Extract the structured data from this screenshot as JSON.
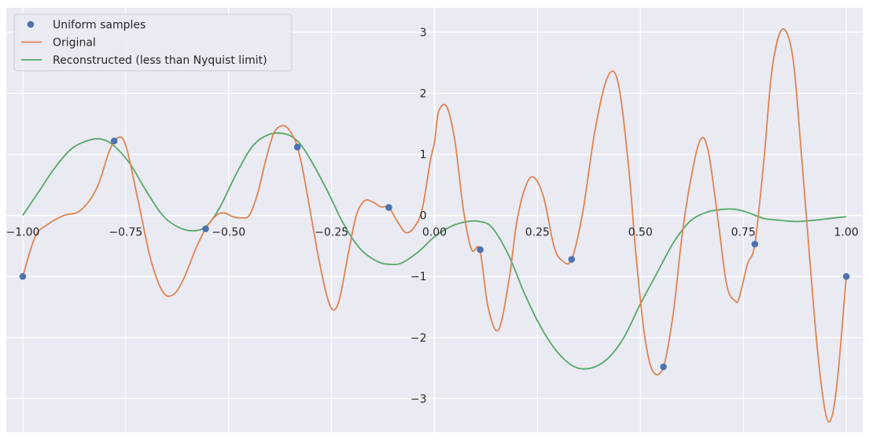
{
  "chart_data": {
    "type": "line",
    "title": "",
    "xlabel": "",
    "ylabel": "",
    "xlim": [
      -1.04,
      1.04
    ],
    "ylim": [
      -3.55,
      3.4
    ],
    "grid": true,
    "axes_through_origin": true,
    "legend_position": "top-left",
    "x_ticks": [
      -1.0,
      -0.75,
      -0.5,
      -0.25,
      0.0,
      0.25,
      0.5,
      0.75,
      1.0
    ],
    "x_tick_labels": [
      "−1.00",
      "−0.75",
      "−0.50",
      "−0.25",
      "0.00",
      "0.25",
      "0.50",
      "0.75",
      "1.00"
    ],
    "y_ticks": [
      -3,
      -2,
      -1,
      0,
      1,
      2,
      3
    ],
    "y_tick_labels": [
      "−3",
      "−2",
      "−1",
      "0",
      "1",
      "2",
      "3"
    ],
    "series": [
      {
        "name": "Uniform samples",
        "kind": "scatter",
        "color": "#4c72b0",
        "x": [
          -1.0,
          -0.778,
          -0.556,
          -0.333,
          -0.111,
          0.111,
          0.333,
          0.556,
          0.778,
          1.0
        ],
        "y": [
          -1.0,
          1.22,
          -0.22,
          1.12,
          0.13,
          -0.56,
          -0.72,
          -2.48,
          -0.47,
          -1.0
        ]
      },
      {
        "name": "Original",
        "kind": "line",
        "color": "#dd8452",
        "x": [
          -1.0,
          -0.97,
          -0.94,
          -0.9,
          -0.86,
          -0.82,
          -0.79,
          -0.77,
          -0.75,
          -0.72,
          -0.69,
          -0.66,
          -0.635,
          -0.61,
          -0.58,
          -0.556,
          -0.53,
          -0.51,
          -0.49,
          -0.47,
          -0.45,
          -0.43,
          -0.41,
          -0.39,
          -0.37,
          -0.355,
          -0.34,
          -0.333,
          -0.32,
          -0.3,
          -0.28,
          -0.26,
          -0.245,
          -0.23,
          -0.21,
          -0.19,
          -0.17,
          -0.15,
          -0.13,
          -0.111,
          -0.09,
          -0.07,
          -0.05,
          -0.03,
          -0.01,
          0.0,
          0.01,
          0.03,
          0.05,
          0.07,
          0.09,
          0.11,
          0.13,
          0.155,
          0.18,
          0.2,
          0.22,
          0.24,
          0.265,
          0.29,
          0.31,
          0.333,
          0.36,
          0.39,
          0.42,
          0.445,
          0.47,
          0.49,
          0.51,
          0.53,
          0.556,
          0.58,
          0.6,
          0.62,
          0.645,
          0.665,
          0.69,
          0.71,
          0.73,
          0.74,
          0.76,
          0.778,
          0.8,
          0.82,
          0.845,
          0.87,
          0.89,
          0.91,
          0.93,
          0.95,
          0.965,
          0.98,
          1.0
        ],
        "y": [
          -1.0,
          -0.35,
          -0.15,
          0.0,
          0.08,
          0.45,
          1.05,
          1.27,
          1.15,
          0.25,
          -0.7,
          -1.25,
          -1.3,
          -1.05,
          -0.55,
          -0.22,
          0.0,
          0.04,
          -0.02,
          -0.04,
          0.0,
          0.35,
          0.9,
          1.35,
          1.47,
          1.42,
          1.25,
          1.12,
          0.75,
          0.0,
          -0.75,
          -1.35,
          -1.55,
          -1.35,
          -0.65,
          0.0,
          0.24,
          0.22,
          0.14,
          0.13,
          -0.1,
          -0.28,
          -0.2,
          0.1,
          0.9,
          1.2,
          1.7,
          1.78,
          1.2,
          0.1,
          -0.56,
          -0.56,
          -1.5,
          -1.88,
          -1.1,
          -0.1,
          0.45,
          0.63,
          0.3,
          -0.5,
          -0.74,
          -0.72,
          0.05,
          1.4,
          2.26,
          2.2,
          0.9,
          -0.7,
          -1.95,
          -2.55,
          -2.48,
          -1.6,
          -0.4,
          0.5,
          1.23,
          1.05,
          -0.15,
          -1.15,
          -1.4,
          -1.35,
          -0.8,
          -0.47,
          0.9,
          2.4,
          3.05,
          2.6,
          1.1,
          -0.6,
          -2.2,
          -3.25,
          -3.3,
          -2.6,
          -1.0
        ]
      },
      {
        "name": "Reconstructed (less than Nyquist limit)",
        "kind": "line",
        "color": "#55a868",
        "x": [
          -1.0,
          -0.96,
          -0.92,
          -0.88,
          -0.84,
          -0.81,
          -0.78,
          -0.74,
          -0.7,
          -0.66,
          -0.62,
          -0.58,
          -0.55,
          -0.52,
          -0.48,
          -0.44,
          -0.4,
          -0.36,
          -0.33,
          -0.3,
          -0.26,
          -0.22,
          -0.18,
          -0.14,
          -0.11,
          -0.08,
          -0.04,
          0.0,
          0.04,
          0.08,
          0.11,
          0.14,
          0.18,
          0.22,
          0.26,
          0.3,
          0.34,
          0.38,
          0.42,
          0.46,
          0.5,
          0.54,
          0.58,
          0.62,
          0.66,
          0.7,
          0.73,
          0.76,
          0.8,
          0.84,
          0.88,
          0.92,
          0.96,
          1.0
        ],
        "y": [
          0.0,
          0.4,
          0.8,
          1.1,
          1.23,
          1.25,
          1.15,
          0.85,
          0.4,
          0.0,
          -0.2,
          -0.25,
          -0.15,
          0.15,
          0.7,
          1.15,
          1.33,
          1.33,
          1.2,
          0.9,
          0.4,
          -0.15,
          -0.55,
          -0.75,
          -0.8,
          -0.78,
          -0.6,
          -0.35,
          -0.18,
          -0.1,
          -0.1,
          -0.2,
          -0.65,
          -1.3,
          -1.85,
          -2.25,
          -2.48,
          -2.5,
          -2.35,
          -2.0,
          -1.45,
          -0.95,
          -0.45,
          -0.1,
          0.05,
          0.1,
          0.1,
          0.05,
          -0.05,
          -0.08,
          -0.1,
          -0.08,
          -0.05,
          -0.02
        ]
      }
    ]
  }
}
